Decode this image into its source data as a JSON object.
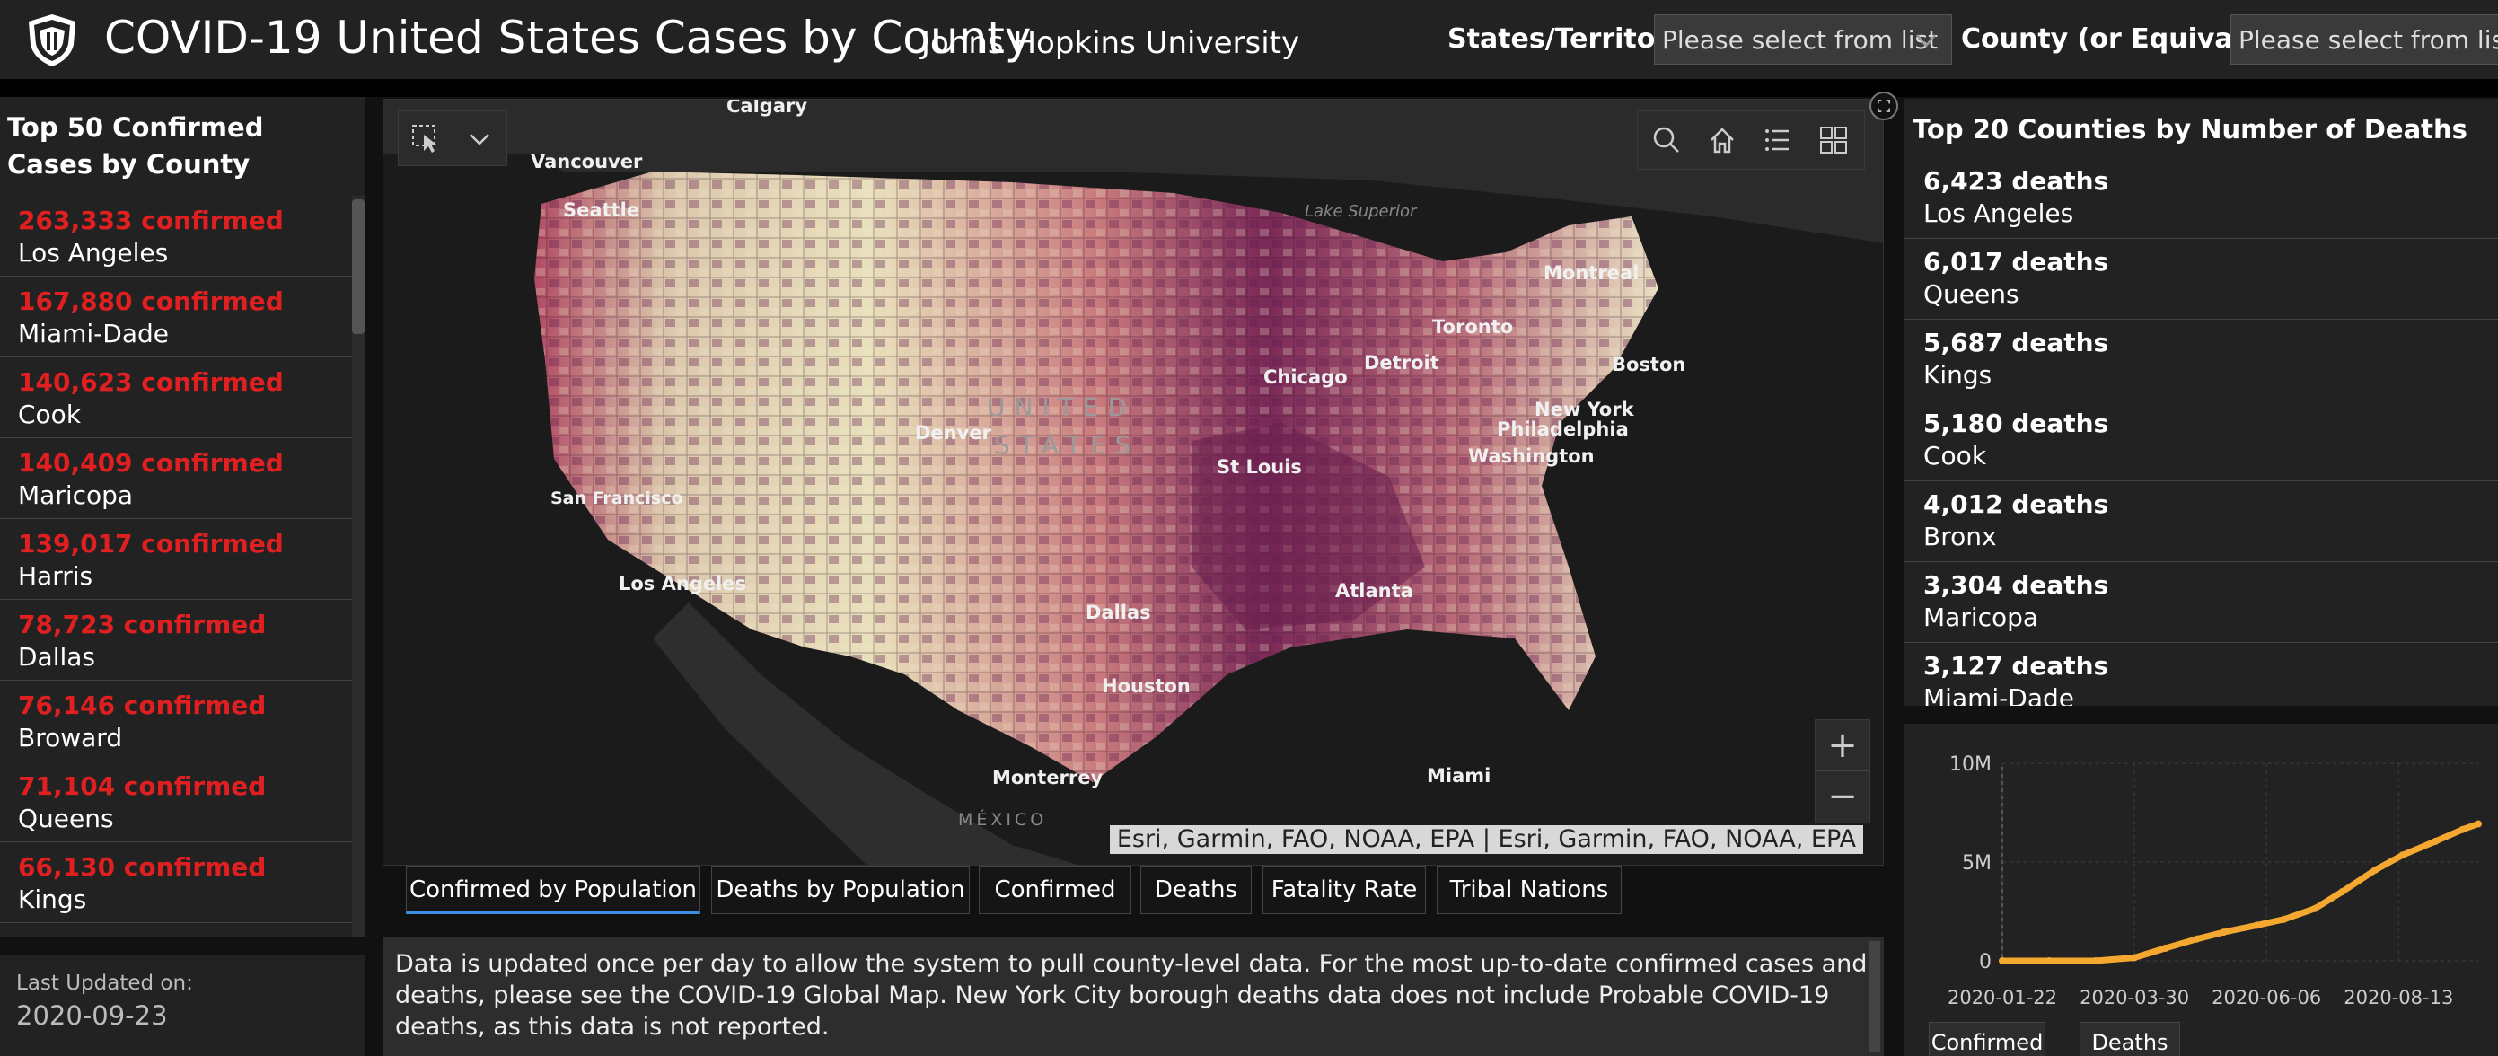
{
  "header": {
    "title": "COVID-19 United States Cases by County",
    "subtitle": "Johns Hopkins University",
    "state_filter": {
      "label": "States/Territories",
      "placeholder": "Please select from list"
    },
    "county_filter": {
      "label": "County (or Equivalent)",
      "placeholder": "Please select from list"
    }
  },
  "left_panel": {
    "title": "Top 50 Confirmed Cases by County",
    "items": [
      {
        "value": "263,333 confirmed",
        "name": "Los Angeles"
      },
      {
        "value": "167,880 confirmed",
        "name": "Miami-Dade"
      },
      {
        "value": "140,623 confirmed",
        "name": "Cook"
      },
      {
        "value": "140,409 confirmed",
        "name": "Maricopa"
      },
      {
        "value": "139,017 confirmed",
        "name": "Harris"
      },
      {
        "value": "78,723 confirmed",
        "name": "Dallas"
      },
      {
        "value": "76,146 confirmed",
        "name": "Broward"
      },
      {
        "value": "71,104 confirmed",
        "name": "Queens"
      },
      {
        "value": "66,130 confirmed",
        "name": "Kings"
      }
    ]
  },
  "last_updated": {
    "label": "Last Updated on:",
    "value": "2020-09-23"
  },
  "map": {
    "labels": {
      "calgary": "Calgary",
      "vancouver": "Vancouver",
      "seattle": "Seattle",
      "lake_superior": "Lake Superior",
      "montreal": "Montreal",
      "toronto": "Toronto",
      "chicago": "Chicago",
      "detroit": "Detroit",
      "boston": "Boston",
      "united": "UNITED",
      "states": "STATES",
      "denver": "Denver",
      "new_york": "New York",
      "philadelphia": "Philadelphia",
      "washington": "Washington",
      "st_louis": "St Louis",
      "san_francisco": "San Francisco",
      "los_angeles": "Los Angeles",
      "atlanta": "Atlanta",
      "dallas": "Dallas",
      "houston": "Houston",
      "monterrey": "Monterrey",
      "miami": "Miami",
      "mexico": "MÉXICO"
    },
    "attribution": "Esri, Garmin, FAO, NOAA, EPA | Esri, Garmin, FAO, NOAA, EPA",
    "zoom_in": "+",
    "zoom_out": "−",
    "icons": [
      "select-icon",
      "chevron-down-icon",
      "search-icon",
      "home-icon",
      "legend-icon",
      "basemap-icon",
      "expand-icon"
    ]
  },
  "tabs": [
    {
      "label": "Confirmed by Population",
      "active": true
    },
    {
      "label": "Deaths by Population"
    },
    {
      "label": "Confirmed"
    },
    {
      "label": "Deaths"
    },
    {
      "label": "Fatality Rate"
    },
    {
      "label": "Tribal Nations"
    }
  ],
  "info": {
    "text": "Data is updated once per day to allow the system to pull county-level data. For the most up-to-date confirmed cases and deaths, please see the COVID-19 Global Map. New York City borough deaths data does not include Probable COVID-19 deaths, as this data is not reported."
  },
  "right_panel": {
    "title": "Top 20 Counties by Number of Deaths",
    "items": [
      {
        "value": "6,423 deaths",
        "name": "Los Angeles"
      },
      {
        "value": "6,017 deaths",
        "name": "Queens"
      },
      {
        "value": "5,687 deaths",
        "name": "Kings"
      },
      {
        "value": "5,180 deaths",
        "name": "Cook"
      },
      {
        "value": "4,012 deaths",
        "name": "Bronx"
      },
      {
        "value": "3,304 deaths",
        "name": "Maricopa"
      },
      {
        "value": "3,127 deaths",
        "name": "Miami-Dade"
      }
    ]
  },
  "chart_tabs": {
    "confirmed": "Confirmed",
    "deaths": "Deaths"
  },
  "chart_data": {
    "type": "line",
    "y_tick_labels": [
      "10M",
      "5M",
      "0"
    ],
    "x_tick_labels": [
      "2020-01-22",
      "2020-03-30",
      "2020-06-06",
      "2020-08-13"
    ],
    "ylim": [
      0,
      10000000
    ],
    "x": [
      "2020-01-22",
      "2020-02-15",
      "2020-03-10",
      "2020-03-30",
      "2020-04-15",
      "2020-05-01",
      "2020-05-15",
      "2020-06-01",
      "2020-06-15",
      "2020-07-01",
      "2020-07-15",
      "2020-08-01",
      "2020-08-15",
      "2020-09-01",
      "2020-09-15",
      "2020-09-23"
    ],
    "series": [
      {
        "values": [
          1,
          15,
          1000,
          160000,
          640000,
          1100000,
          1450000,
          1800000,
          2100000,
          2650000,
          3500000,
          4600000,
          5350000,
          6050000,
          6650000,
          6930000
        ]
      }
    ],
    "colors": {
      "line": "#f5a830",
      "grid": "#3c3c3c"
    }
  }
}
